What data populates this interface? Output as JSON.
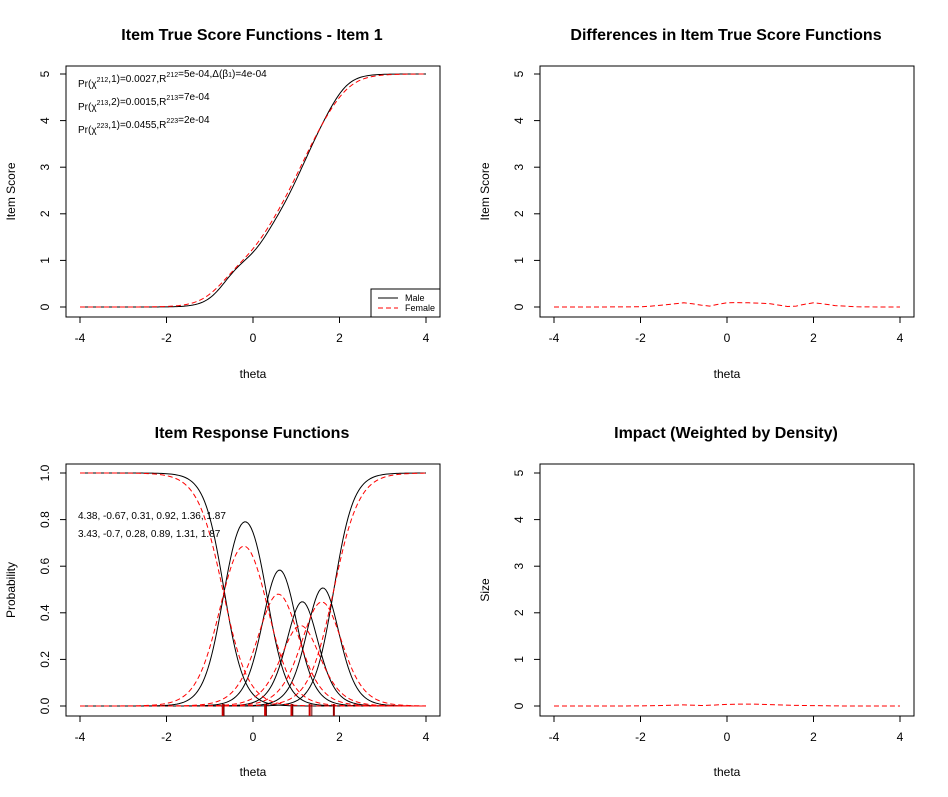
{
  "chart_data": [
    {
      "type": "line",
      "title": "Item True Score Functions - Item 1",
      "xlabel": "theta",
      "ylabel": "Item Score",
      "xlim": [
        -4,
        4
      ],
      "ylim": [
        0,
        5
      ],
      "x_ticks": [
        -4,
        -2,
        0,
        2,
        4
      ],
      "y_ticks": [
        0,
        1,
        2,
        3,
        4,
        5
      ],
      "grid": false,
      "legend_position": "bottom-right",
      "annotations": [
        {
          "pre": "Pr(χ",
          "sup": "2",
          "sub": "12",
          "post": ",1)=0.0027,R",
          "sup2": "2",
          "sub2": "12",
          "post2": "=5e-04,Δ(β",
          "sub3": "1",
          "post3": ")=4e-04"
        },
        {
          "pre": "Pr(χ",
          "sup": "2",
          "sub": "13",
          "post": ",2)=0.0015,R",
          "sup2": "2",
          "sub2": "13",
          "post2": "=7e-04"
        },
        {
          "pre": "Pr(χ",
          "sup": "2",
          "sub": "23",
          "post": ",1)=0.0455,R",
          "sup2": "2",
          "sub2": "23",
          "post2": "=2e-04"
        }
      ],
      "series": [
        {
          "name": "Male",
          "color": "#000000",
          "dash": "solid",
          "a": 4.38,
          "b": [
            -0.67,
            0.31,
            0.92,
            1.36,
            1.87
          ]
        },
        {
          "name": "Female",
          "color": "#ff0000",
          "dash": "dashed",
          "a": 3.43,
          "b": [
            -0.7,
            0.28,
            0.89,
            1.31,
            1.87
          ]
        }
      ]
    },
    {
      "type": "line",
      "title": "Differences in Item True Score Functions",
      "xlabel": "theta",
      "ylabel": "Item Score",
      "xlim": [
        -4,
        4
      ],
      "ylim": [
        0,
        5
      ],
      "x_ticks": [
        -4,
        -2,
        0,
        2,
        4
      ],
      "y_ticks": [
        0,
        1,
        2,
        3,
        4,
        5
      ],
      "grid": false,
      "series": [
        {
          "color": "#ff0000",
          "dash": "dashed",
          "x": [
            -4,
            -3,
            -2,
            -1.8,
            -1.5,
            -1.2,
            -1.0,
            -0.8,
            -0.6,
            -0.4,
            -0.2,
            0,
            0.2,
            0.5,
            0.8,
            1.0,
            1.2,
            1.4,
            1.6,
            1.8,
            2.0,
            2.2,
            2.5,
            3.0,
            3.5,
            4.0
          ],
          "y": [
            0,
            0,
            0.005,
            0.015,
            0.04,
            0.07,
            0.09,
            0.07,
            0.04,
            0.02,
            0.06,
            0.09,
            0.095,
            0.09,
            0.08,
            0.07,
            0.04,
            0.01,
            0.02,
            0.06,
            0.09,
            0.07,
            0.03,
            0.005,
            0,
            0
          ]
        }
      ]
    },
    {
      "type": "line",
      "title": "Item Response Functions",
      "xlabel": "theta",
      "ylabel": "Probability",
      "xlim": [
        -4,
        4
      ],
      "ylim": [
        0,
        1
      ],
      "x_ticks": [
        -4,
        -2,
        0,
        2,
        4
      ],
      "y_ticks": [
        0.0,
        0.2,
        0.4,
        0.6,
        0.8,
        1.0
      ],
      "y_tick_labels": [
        "0.0",
        "0.2",
        "0.4",
        "0.6",
        "0.8",
        "1.0"
      ],
      "grid": false,
      "param_labels": [
        {
          "text": "4.38, -0.67, 0.31, 0.92, 1.36, 1.87",
          "color": "#000000"
        },
        {
          "text": "3.43, -0.7, 0.28, 0.89, 1.31, 1.87",
          "color": "#ff0000"
        }
      ],
      "series": [
        {
          "name": "Male",
          "color": "#000000",
          "dash": "solid",
          "a": 4.38,
          "b": [
            -0.67,
            0.31,
            0.92,
            1.36,
            1.87
          ]
        },
        {
          "name": "Female",
          "color": "#ff0000",
          "dash": "dashed",
          "a": 3.43,
          "b": [
            -0.7,
            0.28,
            0.89,
            1.31,
            1.87
          ]
        }
      ],
      "rug": {
        "black": [
          -0.67,
          0.31,
          0.92,
          1.36,
          1.87
        ],
        "red": [
          -0.7,
          0.28,
          0.89,
          1.31,
          1.87
        ]
      }
    },
    {
      "type": "line",
      "title": "Impact (Weighted by Density)",
      "xlabel": "theta",
      "ylabel": "Size",
      "xlim": [
        -4,
        4
      ],
      "ylim": [
        0,
        5
      ],
      "x_ticks": [
        -4,
        -2,
        0,
        2,
        4
      ],
      "y_ticks": [
        0,
        1,
        2,
        3,
        4,
        5
      ],
      "grid": false,
      "series": [
        {
          "color": "#ff0000",
          "dash": "dashed",
          "x": [
            -4,
            -3,
            -2,
            -1.5,
            -1.0,
            -0.6,
            -0.3,
            0,
            0.3,
            0.6,
            1.0,
            1.5,
            2.0,
            2.5,
            3.0,
            4.0
          ],
          "y": [
            0,
            0,
            0.002,
            0.01,
            0.025,
            0.01,
            0.02,
            0.035,
            0.04,
            0.04,
            0.03,
            0.015,
            0.008,
            0.002,
            0,
            0
          ]
        }
      ]
    }
  ]
}
